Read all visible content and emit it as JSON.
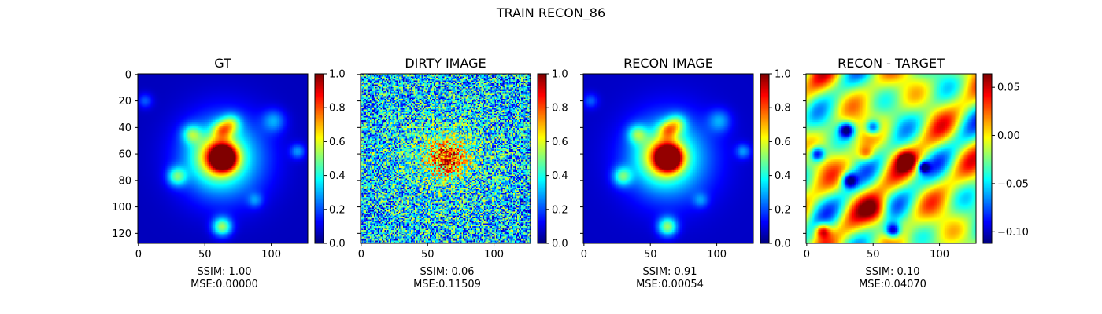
{
  "figure": {
    "title": "TRAIN RECON_86"
  },
  "chart_data": [
    {
      "type": "heatmap",
      "title": "GT",
      "colormap": "jet",
      "image_size": [
        128,
        128
      ],
      "xticks": [
        0,
        50,
        100
      ],
      "yticks": [
        0,
        20,
        40,
        60,
        80,
        100,
        120
      ],
      "show_y_tick_labels": true,
      "colorbar": {
        "range": [
          0.0,
          1.0
        ],
        "ticks": [
          0.0,
          0.2,
          0.4,
          0.6,
          0.8,
          1.0
        ],
        "tick_labels": [
          "0.0",
          "0.2",
          "0.4",
          "0.6",
          "0.8",
          "1.0"
        ]
      },
      "metrics": {
        "ssim": "SSIM: 1.00",
        "mse": "MSE:0.00000"
      }
    },
    {
      "type": "heatmap",
      "title": "DIRTY IMAGE",
      "colormap": "jet",
      "image_size": [
        128,
        128
      ],
      "xticks": [
        0,
        50,
        100
      ],
      "yticks": [
        0,
        20,
        40,
        60,
        80,
        100,
        120
      ],
      "show_y_tick_labels": false,
      "colorbar": {
        "range": [
          0.0,
          1.0
        ],
        "ticks": [
          0.0,
          0.2,
          0.4,
          0.6,
          0.8,
          1.0
        ],
        "tick_labels": [
          "0.0",
          "0.2",
          "0.4",
          "0.6",
          "0.8",
          "1.0"
        ]
      },
      "metrics": {
        "ssim": "SSIM: 0.06",
        "mse": "MSE:0.11509"
      }
    },
    {
      "type": "heatmap",
      "title": "RECON IMAGE",
      "colormap": "jet",
      "image_size": [
        128,
        128
      ],
      "xticks": [
        0,
        50,
        100
      ],
      "yticks": [
        0,
        20,
        40,
        60,
        80,
        100,
        120
      ],
      "show_y_tick_labels": false,
      "colorbar": {
        "range": [
          0.0,
          1.0
        ],
        "ticks": [
          0.0,
          0.2,
          0.4,
          0.6,
          0.8,
          1.0
        ],
        "tick_labels": [
          "0.0",
          "0.2",
          "0.4",
          "0.6",
          "0.8",
          "1.0"
        ]
      },
      "metrics": {
        "ssim": "SSIM: 0.91",
        "mse": "MSE:0.00054"
      }
    },
    {
      "type": "heatmap",
      "title": "RECON - TARGET",
      "colormap": "jet",
      "image_size": [
        128,
        128
      ],
      "xticks": [
        0,
        50,
        100
      ],
      "yticks": [
        0,
        20,
        40,
        60,
        80,
        100,
        120
      ],
      "show_y_tick_labels": false,
      "colorbar": {
        "range": [
          -0.112,
          0.064
        ],
        "ticks": [
          0.05,
          0.0,
          -0.05,
          -0.1
        ],
        "tick_labels": [
          "0.05",
          "0.00",
          "−0.05",
          "−0.10"
        ]
      },
      "metrics": {
        "ssim": "SSIM: 0.10",
        "mse": "MSE:0.04070"
      }
    }
  ]
}
